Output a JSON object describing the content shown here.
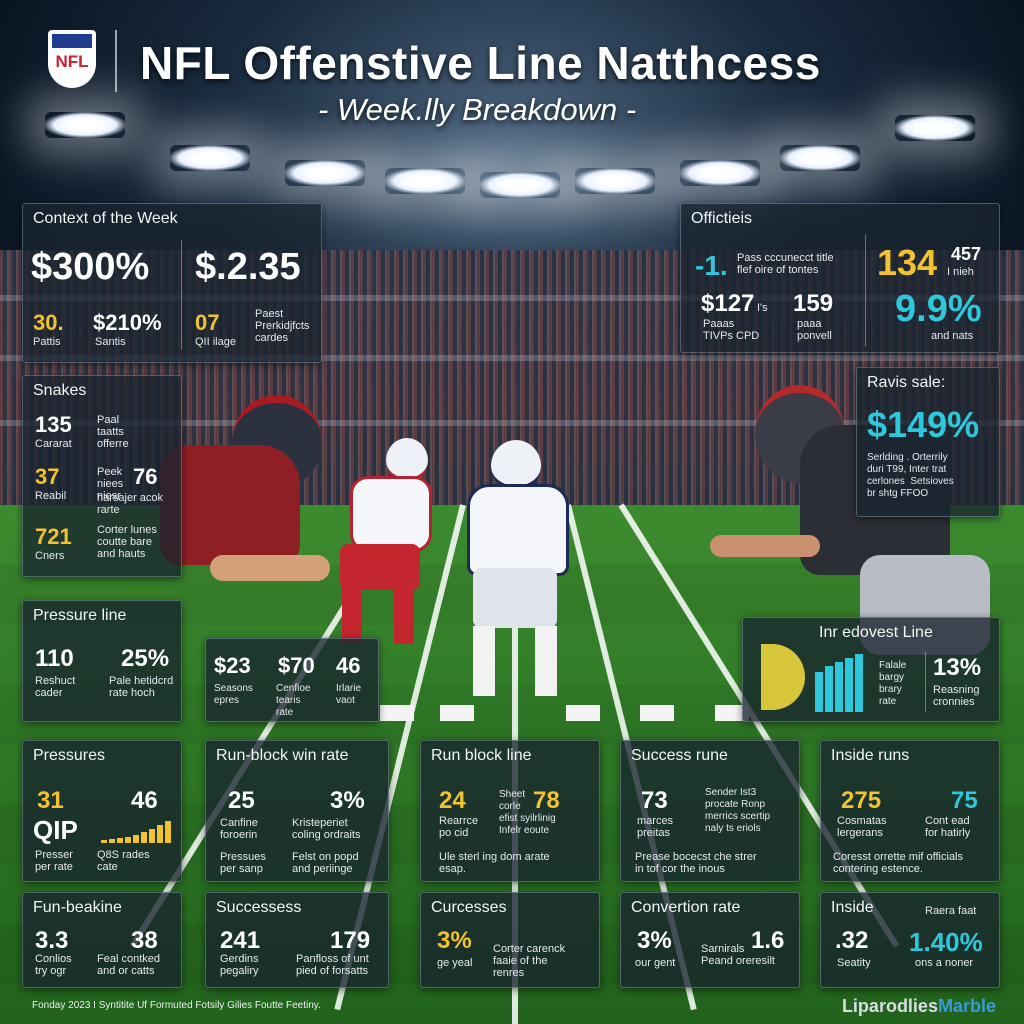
{
  "header": {
    "logo_text": "NFL",
    "title": "NFL Offenstive Line Natthcess",
    "subtitle": "- Week.lly Breakdown -"
  },
  "colors": {
    "yellow": "#f2c230",
    "cyan": "#2ec8dc",
    "panel": "#18242e"
  },
  "panels": {
    "context": {
      "title": "Context of the Week",
      "big1": "$300%",
      "big2": "$.2.35",
      "s1_val": "30.",
      "s1_lbl": "Pattis",
      "s2_val": "$210%",
      "s2_lbl": "Santis",
      "s3_val": "07",
      "s3_lbl": "QII ilage",
      "s4_lbl": "Paest\nPrerkidjfcts\ncardes"
    },
    "officities": {
      "title": "Offictieis",
      "a_val": "-1.",
      "a_lbl": "Pass cccunecct title\nflef oire of tontes",
      "b_val": "134",
      "b_sub": "457",
      "b_lbl": "I nieh",
      "c_val": "$127",
      "c_sub": "I's",
      "c_lbl": "Paaas\nTIVPs CPD",
      "d_val": "159",
      "d_lbl": "paaa\nponvell",
      "e_val": "9.9%",
      "e_lbl": "and nats"
    },
    "snakes": {
      "title": "Snakes",
      "r1_val": "135",
      "r1_lbl": "Cararat",
      "r1_desc": "Paal\ntaatts\nofferre",
      "r2_val": "37",
      "r2_lbl": "Reabil",
      "r2_desc": "Peek\nniees\nniesr",
      "r2b_val": "76",
      "r2b_desc": "harsajer acok\nrarte",
      "r3_val": "721",
      "r3_lbl": "Cners",
      "r3_desc": "Corter lunes\ncoutte bare\nand hauts"
    },
    "ravis": {
      "title": "Ravis sale:",
      "val": "$149%",
      "desc": "Serlding . Orterrily\nduri T99, Inter trat\ncerlones  Setsioves\nbr shtg FFOO"
    },
    "pressure_line": {
      "title": "Pressure line",
      "a_val": "110",
      "a_lbl": "Reshuct\ncader",
      "b_val": "25%",
      "b_lbl": "Pale hetidcrd\nrate hoch"
    },
    "mini": {
      "a_val": "$23",
      "a_lbl": "Seasons\nepres",
      "b_val": "$70",
      "b_lbl": "Cenfioe\ntearis\nrate",
      "c_val": "46",
      "c_lbl": "Irlarie\nvaot"
    },
    "inr_line": {
      "title": "Inr edovest Line",
      "a_lbl": "Falale\nbargy\nbrary\nrate",
      "b_val": "13%",
      "b_lbl": "Reasning\ncronnies"
    },
    "pressures": {
      "title": "Pressures",
      "a_val": "31",
      "a_unit": "QIP",
      "b_val": "46",
      "a_lbl": "Presser\nper rate",
      "b_lbl": "Q8S rades\ncate"
    },
    "run_block_win": {
      "title": "Run-block win rate",
      "a_val": "25",
      "a_lbl": "Canfine\nforoerin",
      "b_val": "3%",
      "b_lbl": "Kristeperiet\ncoling ordraits",
      "c_lbl": "Pressues\nper sanp",
      "d_lbl": "Felst on popd\nand periinge"
    },
    "run_block_line": {
      "title": "Run block line",
      "a_val": "24",
      "a_lbl": "Rearrce\npo cid",
      "b_val": "78",
      "b_lbl": "Sheet\ncorle\nefist syilrlinig\nInfelr eoute",
      "c_lbl": "Ule sterl ing dom arate\nesap."
    },
    "success_rune": {
      "title": "Success rune",
      "a_val": "73",
      "a_lbl": "marces\npreitas",
      "b_lbl": "Sender Ist3\nprocate Ronp\nmerrics scertip\nnaly ts eriols",
      "c_lbl": "Prease bocecst che strer\nin tof cor the inous"
    },
    "inside_runs": {
      "title": "Inside runs",
      "a_val": "275",
      "a_lbl": "Cosmatas\nlergerans",
      "b_val": "75",
      "b_lbl": "Cont ead\nfor hatirly",
      "c_lbl": "Coresst orrette mif officials\ncontering estence."
    },
    "run_beakine": {
      "title": "Fun-beakine",
      "a_val": "3.3",
      "a_lbl": "Conlios\ntry ogr",
      "b_val": "38",
      "b_lbl": "Feal contked\nand or catts"
    },
    "successess": {
      "title": "Successess",
      "a_val": "241",
      "a_lbl": "Gerdins\npegaliry",
      "b_val": "179",
      "b_lbl": "Panfloss of unt\npied of forsatts"
    },
    "curcesses": {
      "title": "Curcesses",
      "a_val": "3%",
      "a_lbl": "ge yeal",
      "b_lbl": "Corter carenck\nfaaie of the\nrenres"
    },
    "conversion": {
      "title": "Convertion rate",
      "a_val": "3%",
      "a_lbl": "our gent",
      "b_val": "1.6",
      "b_lbl": "Sarnirals\nPeand oreresilt"
    },
    "inside": {
      "title": "Inside",
      "a_val": ".32",
      "a_lbl": "Seatity",
      "b_val": "1.40%",
      "b_lbl": "ons a noner",
      "c_lbl": "Raera faat"
    }
  },
  "footer": {
    "note": "Fonday 2023 I Syntitite Uf Formuted Fotsily Gilies Foutte Feetiny.",
    "brand_a": "Liparodlies",
    "brand_b": "Marble"
  }
}
